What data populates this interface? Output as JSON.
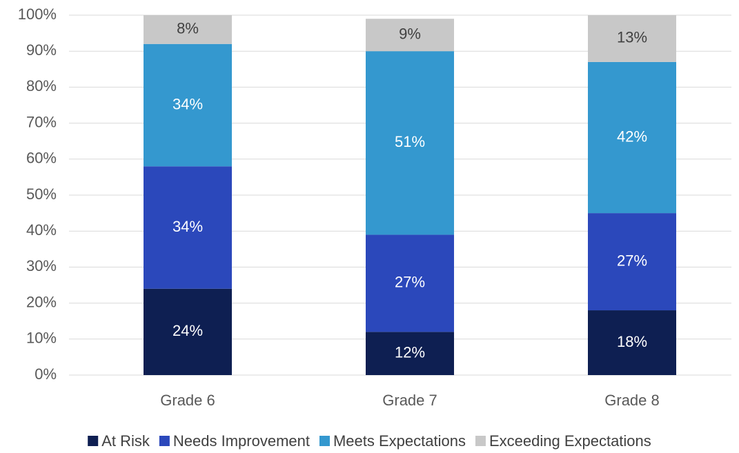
{
  "chart_data": {
    "type": "stacked_bar",
    "categories": [
      "Grade 6",
      "Grade 7",
      "Grade 8"
    ],
    "series": [
      {
        "name": "At Risk",
        "color": "#0e1f52",
        "values": [
          24,
          12,
          18
        ],
        "value_labels": [
          "24%",
          "12%",
          "18%"
        ]
      },
      {
        "name": "Needs Improvement",
        "color": "#2b48bb",
        "values": [
          34,
          27,
          27
        ],
        "value_labels": [
          "34%",
          "27%",
          "27%"
        ]
      },
      {
        "name": "Meets Expectations",
        "color": "#3498cf",
        "values": [
          34,
          51,
          42
        ],
        "value_labels": [
          "34%",
          "51%",
          "42%"
        ]
      },
      {
        "name": "Exceeding Expectations",
        "color": "#c8c8c8",
        "values": [
          8,
          9,
          13
        ],
        "value_labels": [
          "8%",
          "9%",
          "13%"
        ]
      }
    ],
    "ylim": [
      0,
      100
    ],
    "yticks": [
      {
        "value": 0,
        "label": "0%"
      },
      {
        "value": 10,
        "label": "10%"
      },
      {
        "value": 20,
        "label": "20%"
      },
      {
        "value": 30,
        "label": "30%"
      },
      {
        "value": 40,
        "label": "40%"
      },
      {
        "value": 50,
        "label": "50%"
      },
      {
        "value": 60,
        "label": "60%"
      },
      {
        "value": 70,
        "label": "70%"
      },
      {
        "value": 80,
        "label": "80%"
      },
      {
        "value": 90,
        "label": "90%"
      },
      {
        "value": 100,
        "label": "100%"
      }
    ],
    "grid": true,
    "legend": "bottom"
  }
}
